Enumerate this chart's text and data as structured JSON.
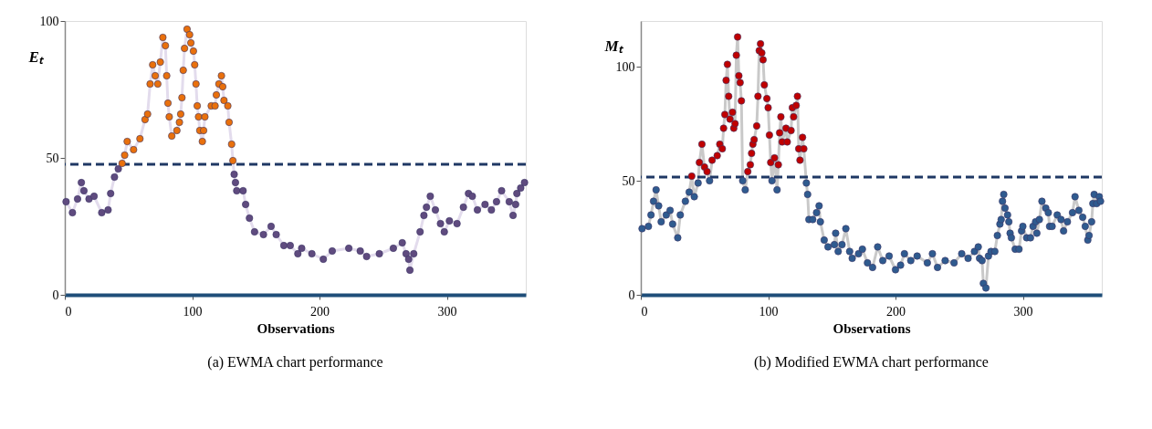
{
  "chart_data": [
    {
      "type": "line",
      "title": "(a) EWMA chart performance",
      "xlabel": "Observations",
      "ylabel": "Eₜ",
      "xlim": [
        0,
        362
      ],
      "xticks": [
        0,
        100,
        200,
        300
      ],
      "ylim": [
        0,
        100
      ],
      "yticks": [
        0,
        50,
        100
      ],
      "ref_lines": [
        {
          "axis": "y",
          "value": 47.7,
          "color": "#1f3864",
          "line_style": "dashed"
        }
      ],
      "series": [
        {
          "type": "line",
          "color": "#e3dced",
          "x": [
            1,
            6,
            10,
            13,
            15,
            19,
            23,
            29,
            34,
            36,
            39,
            42,
            45,
            47,
            49,
            54,
            59,
            63,
            65,
            67,
            69,
            71,
            73,
            75,
            77,
            79,
            80,
            81,
            82,
            84,
            88,
            90,
            91,
            92,
            93,
            94,
            96,
            98,
            99,
            101,
            102,
            103,
            104,
            105,
            106,
            108,
            109,
            110,
            115,
            118,
            119,
            121,
            123,
            124,
            125,
            128,
            129,
            131,
            132,
            133,
            134,
            135,
            140,
            142,
            145,
            149,
            156,
            162,
            166,
            172,
            177,
            183,
            186,
            194,
            203,
            210,
            223,
            232,
            237,
            247,
            258,
            265,
            268,
            270,
            271,
            274,
            279,
            282,
            284,
            287,
            291,
            295,
            298,
            302,
            308,
            313,
            317,
            320,
            324,
            330,
            335,
            339,
            343,
            349,
            352,
            354,
            355,
            358,
            361
          ],
          "values": [
            34,
            30,
            35,
            41,
            38,
            35,
            36,
            30,
            31,
            37,
            43,
            46,
            48,
            51,
            56,
            53,
            57,
            64,
            66,
            77,
            84,
            80,
            77,
            85,
            94,
            91,
            80,
            70,
            65,
            58,
            60,
            63,
            66,
            72,
            82,
            90,
            97,
            95,
            92,
            89,
            84,
            77,
            69,
            65,
            60,
            56,
            60,
            65,
            69,
            69,
            73,
            77,
            80,
            76,
            71,
            69,
            63,
            55,
            49,
            44,
            41,
            38,
            38,
            33,
            28,
            23,
            22,
            25,
            22,
            18,
            18,
            15,
            17,
            15,
            13,
            16,
            17,
            16,
            14,
            15,
            17,
            19,
            15,
            13,
            9,
            15,
            23,
            29,
            32,
            36,
            31,
            26,
            23,
            27,
            26,
            32,
            37,
            36,
            31,
            33,
            31,
            34,
            38,
            34,
            29,
            33,
            37,
            39,
            41
          ]
        },
        {
          "type": "scatter",
          "color": "#5f4b7f",
          "marker": "circle",
          "x": [
            1,
            6,
            10,
            13,
            15,
            19,
            23,
            29,
            34,
            36,
            39,
            42,
            133,
            134,
            135,
            140,
            142,
            145,
            149,
            156,
            162,
            166,
            172,
            177,
            183,
            186,
            194,
            203,
            210,
            223,
            232,
            237,
            247,
            258,
            265,
            268,
            270,
            271,
            274,
            279,
            282,
            284,
            287,
            291,
            295,
            298,
            302,
            308,
            313,
            317,
            320,
            324,
            330,
            335,
            339,
            343,
            349,
            352,
            354,
            355,
            358,
            361
          ],
          "values": [
            34,
            30,
            35,
            41,
            38,
            35,
            36,
            30,
            31,
            37,
            43,
            46,
            44,
            41,
            38,
            38,
            33,
            28,
            23,
            22,
            25,
            22,
            18,
            18,
            15,
            17,
            15,
            13,
            16,
            17,
            16,
            14,
            15,
            17,
            19,
            15,
            13,
            9,
            15,
            23,
            29,
            32,
            36,
            31,
            26,
            23,
            27,
            26,
            32,
            37,
            36,
            31,
            33,
            31,
            34,
            38,
            34,
            29,
            33,
            37,
            39,
            41
          ]
        },
        {
          "type": "scatter",
          "color": "#e9700c",
          "marker": "circle",
          "x": [
            45,
            47,
            49,
            54,
            59,
            63,
            65,
            67,
            69,
            71,
            73,
            75,
            77,
            79,
            80,
            81,
            82,
            84,
            88,
            90,
            91,
            92,
            93,
            94,
            96,
            98,
            99,
            101,
            102,
            103,
            104,
            105,
            106,
            108,
            109,
            110,
            115,
            118,
            119,
            121,
            123,
            124,
            125,
            128,
            129,
            131,
            132
          ],
          "values": [
            48,
            51,
            56,
            53,
            57,
            64,
            66,
            77,
            84,
            80,
            77,
            85,
            94,
            91,
            80,
            70,
            65,
            58,
            60,
            63,
            66,
            72,
            82,
            90,
            97,
            95,
            92,
            89,
            84,
            77,
            69,
            65,
            60,
            56,
            60,
            65,
            69,
            69,
            73,
            77,
            80,
            76,
            71,
            69,
            63,
            55,
            49
          ]
        }
      ]
    },
    {
      "type": "line",
      "title": "(b) Modified EWMA chart performance",
      "xlabel": "Observations",
      "ylabel": "Mₜ",
      "xlim": [
        0,
        362
      ],
      "xticks": [
        0,
        100,
        200,
        300
      ],
      "ylim": [
        0,
        120
      ],
      "yticks": [
        0,
        50,
        100
      ],
      "ref_lines": [
        {
          "axis": "y",
          "value": 51.6,
          "color": "#1f3864",
          "line_style": "dashed"
        }
      ],
      "series": [
        {
          "type": "line",
          "color": "#c9c9c9",
          "x": [
            1,
            6,
            8,
            10,
            12,
            14,
            16,
            20,
            23,
            25,
            29,
            31,
            35,
            38,
            40,
            42,
            45,
            46,
            48,
            50,
            52,
            54,
            56,
            60,
            62,
            64,
            65,
            66,
            67,
            68,
            69,
            70,
            72,
            73,
            74,
            75,
            76,
            77,
            78,
            79,
            80,
            82,
            84,
            86,
            87,
            88,
            89,
            91,
            92,
            93,
            94,
            95,
            96,
            97,
            99,
            100,
            101,
            102,
            103,
            105,
            107,
            108,
            109,
            110,
            111,
            114,
            115,
            118,
            119,
            120,
            122,
            123,
            124,
            125,
            127,
            128,
            130,
            131,
            132,
            135,
            138,
            140,
            141,
            144,
            147,
            152,
            153,
            155,
            158,
            161,
            164,
            166,
            171,
            174,
            178,
            182,
            186,
            190,
            195,
            200,
            204,
            207,
            212,
            217,
            225,
            229,
            233,
            239,
            246,
            252,
            257,
            262,
            265,
            266,
            268,
            269,
            271,
            273,
            275,
            278,
            280,
            282,
            283,
            284,
            285,
            286,
            288,
            289,
            290,
            291,
            294,
            297,
            299,
            300,
            303,
            306,
            308,
            310,
            311,
            313,
            315,
            318,
            320,
            321,
            323,
            327,
            330,
            332,
            335,
            339,
            341,
            344,
            347,
            349,
            351,
            352,
            354,
            355,
            356,
            358,
            360,
            361
          ],
          "values": [
            29,
            30,
            35,
            41,
            46,
            39,
            32,
            35,
            37,
            31,
            25,
            35,
            41,
            45,
            52,
            43,
            49,
            58,
            66,
            56,
            54,
            50,
            59,
            61,
            66,
            64,
            73,
            79,
            94,
            101,
            87,
            77,
            80,
            73,
            75,
            105,
            113,
            96,
            93,
            85,
            50,
            46,
            54,
            57,
            62,
            66,
            68,
            74,
            87,
            107,
            110,
            106,
            103,
            92,
            86,
            82,
            70,
            58,
            50,
            60,
            46,
            57,
            71,
            78,
            67,
            73,
            67,
            72,
            82,
            78,
            83,
            87,
            64,
            59,
            69,
            64,
            49,
            44,
            33,
            33,
            36,
            39,
            32,
            24,
            21,
            22,
            27,
            19,
            22,
            29,
            19,
            16,
            18,
            20,
            14,
            12,
            21,
            15,
            17,
            11,
            13,
            18,
            15,
            17,
            14,
            18,
            12,
            15,
            14,
            18,
            16,
            19,
            21,
            16,
            15,
            5,
            3,
            17,
            19,
            19,
            26,
            31,
            33,
            41,
            44,
            38,
            35,
            32,
            27,
            25,
            20,
            20,
            28,
            30,
            25,
            25,
            30,
            32,
            27,
            33,
            41,
            38,
            36,
            30,
            30,
            35,
            33,
            28,
            32,
            36,
            43,
            37,
            34,
            30,
            24,
            26,
            32,
            40,
            44,
            40,
            43,
            41
          ]
        },
        {
          "type": "scatter",
          "color": "#2f5b8f",
          "marker": "circle",
          "x": [
            1,
            6,
            8,
            10,
            12,
            14,
            16,
            20,
            23,
            25,
            29,
            31,
            35,
            38,
            42,
            45,
            54,
            80,
            82,
            103,
            107,
            130,
            131,
            132,
            135,
            138,
            140,
            141,
            144,
            147,
            152,
            153,
            155,
            158,
            161,
            164,
            166,
            171,
            174,
            178,
            182,
            186,
            190,
            195,
            200,
            204,
            207,
            212,
            217,
            225,
            229,
            233,
            239,
            246,
            252,
            257,
            262,
            265,
            266,
            268,
            269,
            271,
            273,
            275,
            278,
            280,
            282,
            283,
            284,
            285,
            286,
            288,
            289,
            290,
            291,
            294,
            297,
            299,
            300,
            303,
            306,
            308,
            310,
            311,
            313,
            315,
            318,
            320,
            321,
            323,
            327,
            330,
            332,
            335,
            339,
            341,
            344,
            347,
            349,
            351,
            352,
            354,
            355,
            356,
            358,
            360,
            361
          ],
          "values": [
            29,
            30,
            35,
            41,
            46,
            39,
            32,
            35,
            37,
            31,
            25,
            35,
            41,
            45,
            43,
            49,
            50,
            50,
            46,
            50,
            46,
            49,
            44,
            33,
            33,
            36,
            39,
            32,
            24,
            21,
            22,
            27,
            19,
            22,
            29,
            19,
            16,
            18,
            20,
            14,
            12,
            21,
            15,
            17,
            11,
            13,
            18,
            15,
            17,
            14,
            18,
            12,
            15,
            14,
            18,
            16,
            19,
            21,
            16,
            15,
            5,
            3,
            17,
            19,
            19,
            26,
            31,
            33,
            41,
            44,
            38,
            35,
            32,
            27,
            25,
            20,
            20,
            28,
            30,
            25,
            25,
            30,
            32,
            27,
            33,
            41,
            38,
            36,
            30,
            30,
            35,
            33,
            28,
            32,
            36,
            43,
            37,
            34,
            30,
            24,
            26,
            32,
            40,
            44,
            40,
            43,
            41
          ]
        },
        {
          "type": "scatter",
          "color": "#c00000",
          "marker": "circle",
          "x": [
            40,
            46,
            48,
            50,
            52,
            56,
            60,
            62,
            64,
            65,
            66,
            67,
            68,
            69,
            70,
            72,
            73,
            74,
            75,
            76,
            77,
            78,
            79,
            84,
            86,
            87,
            88,
            89,
            91,
            92,
            93,
            94,
            95,
            96,
            97,
            99,
            100,
            101,
            102,
            105,
            108,
            109,
            110,
            111,
            114,
            115,
            118,
            119,
            120,
            122,
            123,
            124,
            125,
            127,
            128
          ],
          "values": [
            52,
            58,
            66,
            56,
            54,
            59,
            61,
            66,
            64,
            73,
            79,
            94,
            101,
            87,
            77,
            80,
            73,
            75,
            105,
            113,
            96,
            93,
            85,
            54,
            57,
            62,
            66,
            68,
            74,
            87,
            107,
            110,
            106,
            103,
            92,
            86,
            82,
            70,
            58,
            60,
            57,
            71,
            78,
            67,
            73,
            67,
            72,
            82,
            78,
            83,
            87,
            64,
            59,
            69,
            64
          ]
        }
      ]
    }
  ]
}
